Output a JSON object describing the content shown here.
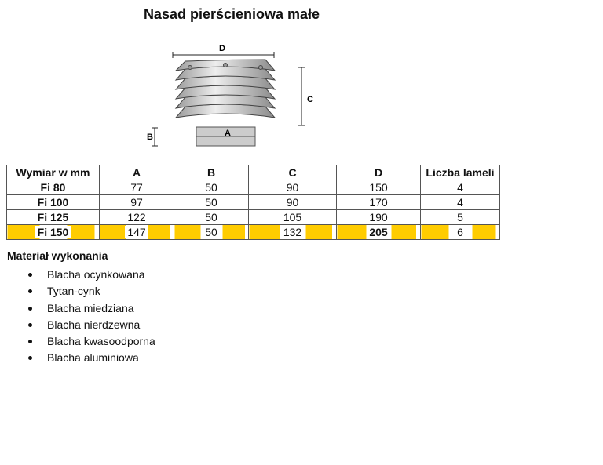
{
  "title": "Nasad pierścieniowa małe",
  "drawing": {
    "labels": {
      "d": "D",
      "c": "C",
      "b": "B",
      "a": "A"
    }
  },
  "table": {
    "headers": [
      "Wymiar w mm",
      "A",
      "B",
      "C",
      "D",
      "Liczba lameli"
    ],
    "rows": [
      [
        "Fi 80",
        "77",
        "50",
        "90",
        "150",
        "4"
      ],
      [
        "Fi 100",
        "97",
        "50",
        "90",
        "170",
        "4"
      ],
      [
        "Fi 125",
        "122",
        "50",
        "105",
        "190",
        "5"
      ],
      [
        "Fi 150",
        "147",
        "50",
        "132",
        "205",
        "6"
      ]
    ],
    "highlight_color": "#ffcc00"
  },
  "material": {
    "title": "Materiał wykonania",
    "items": [
      "Blacha ocynkowana",
      "Tytan-cynk",
      "Blacha miedziana",
      "Blacha nierdzewna",
      "Blacha kwasoodporna",
      "Blacha aluminiowa"
    ]
  }
}
